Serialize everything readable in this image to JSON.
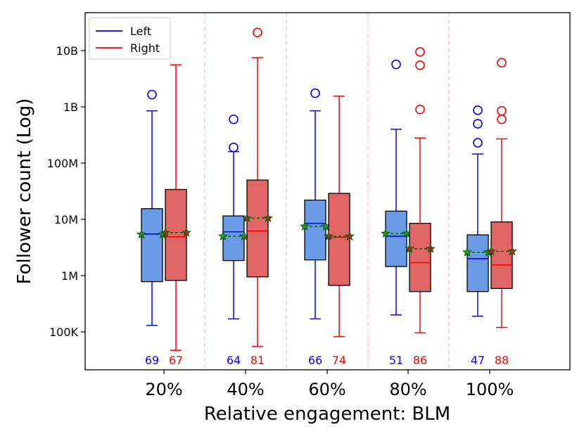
{
  "chart_data": {
    "type": "box",
    "title": "",
    "xlabel": "Relative engagement: BLM",
    "ylabel": "Follower count (Log)",
    "yscale": "log",
    "ylim": [
      20000,
      50000000000
    ],
    "yticks": [
      {
        "value": 100000,
        "label": "100K"
      },
      {
        "value": 1000000,
        "label": "1M"
      },
      {
        "value": 10000000,
        "label": "10M"
      },
      {
        "value": 100000000,
        "label": "100M"
      },
      {
        "value": 1000000000,
        "label": "1B"
      },
      {
        "value": 10000000000,
        "label": "10B"
      }
    ],
    "categories": [
      "20%",
      "40%",
      "60%",
      "80%",
      "100%"
    ],
    "legend": {
      "location": "top-left",
      "entries": [
        {
          "name": "Left",
          "color": "#0000ff"
        },
        {
          "name": "Right",
          "color": "#ff0000"
        }
      ]
    },
    "series": [
      {
        "name": "Left",
        "line_color": "#0000ff",
        "fill_color": "#6a9be6",
        "boxes": [
          {
            "category": "20%",
            "whisker_low": 130000,
            "q1": 780000,
            "median": 5500000,
            "q3": 15500000,
            "whisker_high": 850000000,
            "mean": 5400000,
            "outliers": [
              1650000000
            ],
            "n": "69"
          },
          {
            "category": "40%",
            "whisker_low": 170000,
            "q1": 1850000,
            "median": 6000000,
            "q3": 11500000,
            "whisker_high": 160000000,
            "mean": 5000000,
            "outliers": [
              190000000,
              600000000
            ],
            "n": "64"
          },
          {
            "category": "60%",
            "whisker_low": 170000,
            "q1": 1900000,
            "median": 8500000,
            "q3": 22000000,
            "whisker_high": 850000000,
            "mean": 7500000,
            "outliers": [
              1750000000
            ],
            "n": "66"
          },
          {
            "category": "80%",
            "whisker_low": 200000,
            "q1": 1450000,
            "median": 5000000,
            "q3": 14000000,
            "whisker_high": 400000000,
            "mean": 5600000,
            "outliers": [
              5700000000
            ],
            "n": "51"
          },
          {
            "category": "100%",
            "whisker_low": 190000,
            "q1": 520000,
            "median": 2000000,
            "q3": 5300000,
            "whisker_high": 145000000,
            "mean": 2600000,
            "outliers": [
              230000000,
              500000000,
              870000000
            ],
            "n": "47"
          }
        ]
      },
      {
        "name": "Right",
        "line_color": "#ff0000",
        "fill_color": "#e06666",
        "boxes": [
          {
            "category": "20%",
            "whisker_low": 47000,
            "q1": 820000,
            "median": 4900000,
            "q3": 34000000,
            "whisker_high": 5600000000,
            "mean": 5800000,
            "outliers": [],
            "n": "67"
          },
          {
            "category": "40%",
            "whisker_low": 55000,
            "q1": 950000,
            "median": 6200000,
            "q3": 50000000,
            "whisker_high": 7500000000,
            "mean": 10500000,
            "outliers": [
              21000000000
            ],
            "n": "81"
          },
          {
            "category": "60%",
            "whisker_low": 82000,
            "q1": 670000,
            "median": 4800000,
            "q3": 29000000,
            "whisker_high": 1550000000,
            "mean": 5000000,
            "outliers": [],
            "n": "74"
          },
          {
            "category": "80%",
            "whisker_low": 96000,
            "q1": 520000,
            "median": 1700000,
            "q3": 8500000,
            "whisker_high": 280000000,
            "mean": 3000000,
            "outliers": [
              900000000,
              5500000000,
              9500000000
            ],
            "n": "86"
          },
          {
            "category": "100%",
            "whisker_low": 120000,
            "q1": 590000,
            "median": 1550000,
            "q3": 9000000,
            "whisker_high": 270000000,
            "mean": 2700000,
            "outliers": [
              600000000,
              850000000,
              6100000000
            ],
            "n": "88"
          }
        ]
      }
    ],
    "mean_marker": {
      "shape": "star",
      "color": "#006400",
      "line": "dashed"
    },
    "separator_color": "#ffb6c1"
  }
}
